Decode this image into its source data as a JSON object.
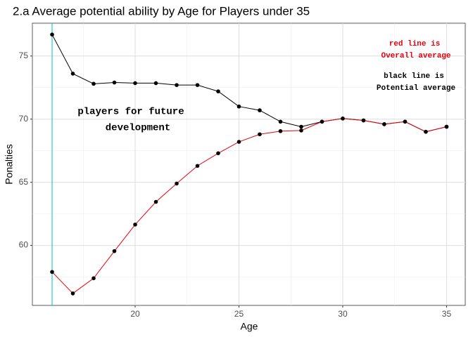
{
  "chart_data": {
    "type": "line",
    "title": "2.a Average potential ability by Age for Players under 35",
    "x_label": "Age",
    "y_label": "Ponalties",
    "x": [
      16,
      17,
      18,
      19,
      20,
      21,
      22,
      23,
      24,
      25,
      26,
      27,
      28,
      29,
      30,
      31,
      32,
      33,
      34,
      35
    ],
    "series": [
      {
        "name": "Potential average",
        "color": "#000000",
        "values": [
          76.7,
          73.6,
          72.8,
          72.9,
          72.85,
          72.85,
          72.7,
          72.7,
          72.2,
          71.0,
          70.7,
          69.8,
          69.4,
          69.8,
          70.05,
          69.9,
          69.6,
          69.8,
          69.0,
          69.4
        ]
      },
      {
        "name": "Overall average",
        "color": "#e8000b",
        "values": [
          57.9,
          56.2,
          57.4,
          59.55,
          61.65,
          63.45,
          64.9,
          66.3,
          67.3,
          68.2,
          68.8,
          69.05,
          69.1,
          69.8,
          70.05,
          69.9,
          69.6,
          69.8,
          69.0,
          69.4
        ]
      }
    ],
    "vline": 16,
    "vline_color": "#00bfc4",
    "xlim": [
      15.05,
      35.9
    ],
    "xticks": [
      20,
      25,
      30,
      35
    ],
    "ylim": [
      55.25,
      77.6
    ],
    "yticks": [
      60,
      65,
      70,
      75
    ],
    "grid": true,
    "annotations": [
      "players for future",
      "development",
      "red line is",
      "Overall average",
      "black line is",
      "Potential average"
    ]
  }
}
